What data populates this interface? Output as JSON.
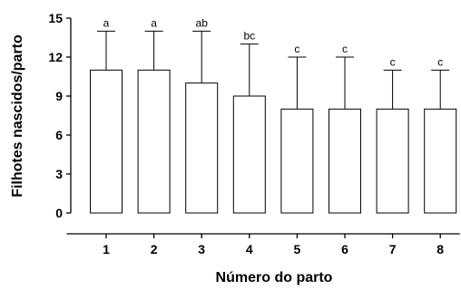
{
  "chart_data": {
    "type": "bar",
    "title": "",
    "xlabel": "Número do parto",
    "ylabel": "Filhotes nascidos/parto",
    "ylim": [
      0,
      15
    ],
    "yticks": [
      "0",
      "3",
      "6",
      "9",
      "12",
      "15"
    ],
    "grid": false,
    "categories": [
      "1",
      "2",
      "3",
      "4",
      "5",
      "6",
      "7",
      "8"
    ],
    "values": [
      11,
      11,
      10,
      9,
      8,
      8,
      8,
      8
    ],
    "error_upper": [
      14,
      14,
      14,
      13,
      12,
      12,
      11,
      11
    ],
    "significance_labels": [
      "a",
      "a",
      "ab",
      "bc",
      "c",
      "c",
      "c",
      "c"
    ],
    "bar_fill": "#ffffff",
    "bar_stroke": "#000000"
  }
}
